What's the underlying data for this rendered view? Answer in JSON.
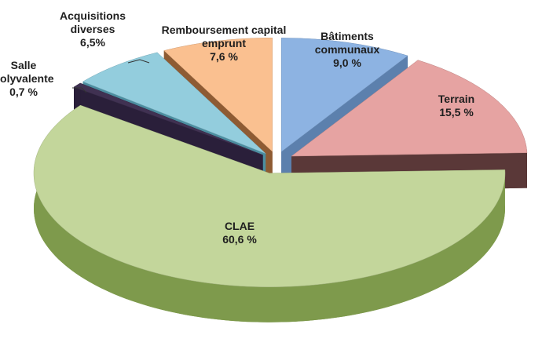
{
  "chart_data": {
    "type": "pie3d",
    "categories": [
      "Bâtiments communaux",
      "Terrain",
      "CLAE",
      "Salle polyvalente",
      "Acquisitions diverses",
      "Remboursement capital emprunt"
    ],
    "values": [
      9.0,
      15.5,
      60.6,
      0.7,
      6.5,
      7.6
    ],
    "value_labels": [
      "9,0 %",
      "15,5 %",
      "60,6 %",
      "0,7 %",
      "6,5%",
      "7,6 %"
    ],
    "colors": [
      "#8db3e2",
      "#e6a3a2",
      "#c3d69b",
      "#403152",
      "#93cddd",
      "#fac090"
    ]
  }
}
